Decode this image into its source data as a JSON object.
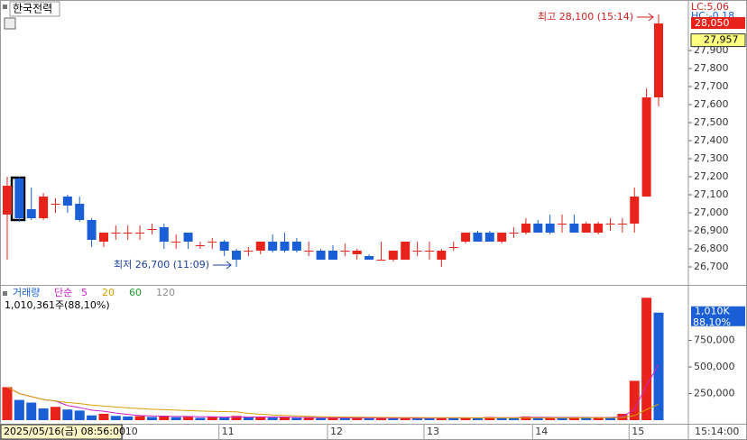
{
  "chart_data": {
    "type": "candlestick",
    "title": "한국전력",
    "lc_label": "LC:5,06",
    "hc_label": "HC:-0.18",
    "up_color": "#e8231b",
    "down_color": "#1a5fd6",
    "categories": [
      null,
      null,
      null,
      null,
      null,
      null,
      null,
      null,
      null,
      null,
      "10",
      null,
      null,
      null,
      null,
      null,
      null,
      null,
      "11",
      null,
      null,
      null,
      null,
      null,
      null,
      null,
      null,
      "12",
      null,
      null,
      null,
      null,
      null,
      null,
      null,
      "13",
      null,
      null,
      null,
      null,
      null,
      null,
      null,
      null,
      "14",
      null,
      null,
      null,
      null,
      null,
      null,
      null,
      "15",
      null,
      null
    ],
    "open": [
      26990,
      27190,
      27020,
      26970,
      27050,
      27090,
      27050,
      26960,
      26840,
      26890,
      26890,
      26890,
      26910,
      26920,
      26840,
      26890,
      26820,
      26840,
      26840,
      26790,
      26790,
      26790,
      26840,
      26840,
      26840,
      26790,
      26790,
      26790,
      26790,
      26770,
      26760,
      26740,
      26740,
      26740,
      26790,
      26790,
      26740,
      26810,
      26840,
      26890,
      26890,
      26840,
      26890,
      26890,
      26940,
      26940,
      26940,
      26940,
      26890,
      26890,
      26940,
      26940,
      26940,
      27090,
      27640
    ],
    "high": [
      27200,
      27200,
      27140,
      27110,
      27080,
      27100,
      27090,
      26970,
      26890,
      26930,
      26930,
      26930,
      26940,
      26940,
      26880,
      26890,
      26840,
      26860,
      26850,
      26800,
      26810,
      26840,
      26880,
      26890,
      26860,
      26840,
      26800,
      26820,
      26830,
      26800,
      26770,
      26840,
      26790,
      26840,
      26840,
      26840,
      26800,
      26840,
      26890,
      26900,
      26900,
      26890,
      26920,
      26970,
      26960,
      26990,
      26990,
      26990,
      26950,
      26950,
      26970,
      26970,
      27140,
      27690,
      28100
    ],
    "low": [
      26740,
      26950,
      26960,
      26960,
      27000,
      27000,
      26950,
      26810,
      26810,
      26850,
      26850,
      26850,
      26880,
      26800,
      26800,
      26800,
      26800,
      26800,
      26760,
      26700,
      26760,
      26770,
      26780,
      26780,
      26780,
      26760,
      26740,
      26740,
      26760,
      26740,
      26740,
      26740,
      26730,
      26740,
      26760,
      26740,
      26700,
      26790,
      26830,
      26840,
      26840,
      26830,
      26860,
      26880,
      26890,
      26880,
      26890,
      26890,
      26890,
      26880,
      26900,
      26890,
      26890,
      27090,
      27590
    ],
    "close": [
      27150,
      26970,
      26970,
      27090,
      27050,
      27040,
      26960,
      26850,
      26890,
      26890,
      26890,
      26890,
      26910,
      26840,
      26840,
      26840,
      26820,
      26840,
      26790,
      26740,
      26790,
      26840,
      26790,
      26790,
      26790,
      26790,
      26740,
      26740,
      26790,
      26790,
      26740,
      26740,
      26790,
      26840,
      26790,
      26790,
      26790,
      26810,
      26890,
      26840,
      26840,
      26890,
      26890,
      26940,
      26890,
      26890,
      26940,
      26890,
      26940,
      26940,
      26940,
      26940,
      27090,
      27640,
      28050
    ],
    "volume": [
      310000,
      190000,
      165000,
      110000,
      125000,
      100000,
      90000,
      45000,
      60000,
      40000,
      35000,
      38000,
      30000,
      42000,
      28000,
      35000,
      22000,
      30000,
      25000,
      40000,
      28000,
      30000,
      24000,
      26000,
      22000,
      25000,
      20000,
      21000,
      19000,
      22000,
      18000,
      20000,
      17000,
      22000,
      20000,
      18000,
      25000,
      20000,
      24000,
      18000,
      30000,
      25000,
      22000,
      35000,
      24000,
      26000,
      22000,
      28000,
      25000,
      27000,
      24000,
      60000,
      370000,
      1150000,
      1010361
    ],
    "ylim": [
      26605,
      28170
    ],
    "yticks": [
      {
        "value": 26700,
        "label": "26,700"
      },
      {
        "value": 26800,
        "label": "26,800"
      },
      {
        "value": 26900,
        "label": "26,900"
      },
      {
        "value": 27000,
        "label": "27,000"
      },
      {
        "value": 27100,
        "label": "27,100"
      },
      {
        "value": 27200,
        "label": "27,200"
      },
      {
        "value": 27300,
        "label": "27,300"
      },
      {
        "value": 27400,
        "label": "27,400"
      },
      {
        "value": 27500,
        "label": "27,500"
      },
      {
        "value": 27600,
        "label": "27,600"
      },
      {
        "value": 27700,
        "label": "27,700"
      },
      {
        "value": 27800,
        "label": "27,800"
      },
      {
        "value": 27900,
        "label": "27,900"
      }
    ],
    "current_price": {
      "value": 28050,
      "label": "28,050"
    },
    "average_price": {
      "value": 27957,
      "label": "27,957"
    },
    "high_note": {
      "value": 28100,
      "text": "최고 28,100 (15:14)"
    },
    "low_note": {
      "value": 26700,
      "text": "최저 26,700 (11:09)"
    },
    "volume_title": "거래량",
    "ma_title": "단순",
    "ma": [
      {
        "period": 5,
        "color": "#d020c8"
      },
      {
        "period": 20,
        "color": "#d8a000"
      },
      {
        "period": 60,
        "color": "#20a030"
      },
      {
        "period": 120,
        "color": "#909090"
      }
    ],
    "volume_info": "1,010,361주(88,10%)",
    "current_volume": {
      "value": 1010361,
      "label": "1,010K"
    },
    "volume_ratio": "88,10%",
    "vlim": [
      0,
      1220000
    ],
    "vticks": [
      {
        "value": 250000,
        "label": "250,000"
      },
      {
        "value": 500000,
        "label": "500,000"
      },
      {
        "value": 750000,
        "label": "750,000"
      }
    ],
    "time_label": "15:14:00",
    "date_label": "2025/05/16(금) 08:56:00"
  }
}
